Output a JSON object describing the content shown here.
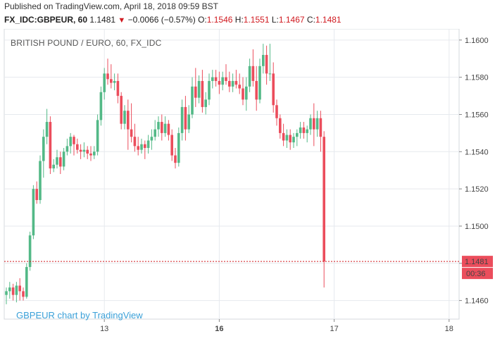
{
  "header": {
    "published": "Published on TradingView.com, April 18, 2018 09:59 BST",
    "symbol": "FX_IDC:GBPEUR, 60",
    "last": "1.1481",
    "change": "−0.0066 (−0.57%)",
    "o_label": "O:",
    "o_value": "1.1546",
    "h_label": "H:",
    "h_value": "1.1551",
    "l_label": "L:",
    "l_value": "1.1467",
    "c_label": "C:",
    "c_value": "1.1481"
  },
  "watermark": "GBPEUR chart by TradingView",
  "colors": {
    "up": "#53b987",
    "down": "#eb4d5c",
    "grid": "#e6e9ee",
    "price_line": "#d0191f"
  },
  "chart_data": {
    "type": "candlestick",
    "title": "BRITISH POUND / EURO, 60, FX_IDC",
    "ylim": [
      1.145,
      1.1606
    ],
    "y_ticks": [
      "1.1600",
      "1.1580",
      "1.1560",
      "1.1540",
      "1.1520",
      "1.1500",
      "1.1480",
      "1.1460"
    ],
    "x_ticks": [
      {
        "label": "13",
        "bar": 29,
        "bold": false
      },
      {
        "label": "16",
        "bar": 63,
        "bold": true
      },
      {
        "label": "17",
        "bar": 97,
        "bold": false
      },
      {
        "label": "18",
        "bar": 131,
        "bold": false
      }
    ],
    "last_price": "1.1481",
    "countdown": "00:36",
    "ohlc": [
      [
        1.1463,
        1.1467,
        1.1458,
        1.1465
      ],
      [
        1.1465,
        1.147,
        1.1461,
        1.1467
      ],
      [
        1.1467,
        1.1469,
        1.146,
        1.1463
      ],
      [
        1.1463,
        1.147,
        1.1459,
        1.1468
      ],
      [
        1.1468,
        1.1472,
        1.146,
        1.1465
      ],
      [
        1.1465,
        1.1467,
        1.146,
        1.1462
      ],
      [
        1.1462,
        1.148,
        1.1461,
        1.1478
      ],
      [
        1.1478,
        1.1497,
        1.1476,
        1.1495
      ],
      [
        1.1495,
        1.1522,
        1.1493,
        1.152
      ],
      [
        1.152,
        1.1524,
        1.1512,
        1.1514
      ],
      [
        1.1514,
        1.1538,
        1.1512,
        1.1535
      ],
      [
        1.1535,
        1.1552,
        1.1526,
        1.1548
      ],
      [
        1.1548,
        1.1563,
        1.1544,
        1.1556
      ],
      [
        1.1556,
        1.1559,
        1.1528,
        1.1531
      ],
      [
        1.1531,
        1.1536,
        1.1529,
        1.1533
      ],
      [
        1.1533,
        1.1541,
        1.1531,
        1.1537
      ],
      [
        1.1537,
        1.154,
        1.1528,
        1.1532
      ],
      [
        1.1532,
        1.1542,
        1.153,
        1.154
      ],
      [
        1.154,
        1.1547,
        1.1538,
        1.1543
      ],
      [
        1.1543,
        1.155,
        1.1539,
        1.1548
      ],
      [
        1.1548,
        1.1549,
        1.1538,
        1.1544
      ],
      [
        1.1544,
        1.1547,
        1.1539,
        1.1541
      ],
      [
        1.1541,
        1.1544,
        1.1536,
        1.154
      ],
      [
        1.154,
        1.1545,
        1.1537,
        1.1541
      ],
      [
        1.1541,
        1.1543,
        1.1536,
        1.1539
      ],
      [
        1.1539,
        1.1543,
        1.1535,
        1.1538
      ],
      [
        1.1538,
        1.1543,
        1.1536,
        1.154
      ],
      [
        1.154,
        1.156,
        1.1538,
        1.1557
      ],
      [
        1.1557,
        1.1575,
        1.1554,
        1.1572
      ],
      [
        1.1572,
        1.1585,
        1.1568,
        1.1582
      ],
      [
        1.1582,
        1.159,
        1.1576,
        1.1579
      ],
      [
        1.1579,
        1.1587,
        1.1574,
        1.1577
      ],
      [
        1.1577,
        1.1582,
        1.1573,
        1.1578
      ],
      [
        1.1578,
        1.1582,
        1.1566,
        1.157
      ],
      [
        1.157,
        1.1572,
        1.1552,
        1.1555
      ],
      [
        1.1555,
        1.1565,
        1.1552,
        1.1562
      ],
      [
        1.1562,
        1.1568,
        1.1541,
        1.1552
      ],
      [
        1.1552,
        1.1566,
        1.1545,
        1.1548
      ],
      [
        1.1548,
        1.1555,
        1.154,
        1.1543
      ],
      [
        1.1543,
        1.1548,
        1.1538,
        1.1541
      ],
      [
        1.1541,
        1.1547,
        1.1539,
        1.1544
      ],
      [
        1.1544,
        1.1546,
        1.1536,
        1.1542
      ],
      [
        1.1542,
        1.1549,
        1.1539,
        1.1546
      ],
      [
        1.1546,
        1.1552,
        1.1541,
        1.1548
      ],
      [
        1.1548,
        1.1557,
        1.1546,
        1.1552
      ],
      [
        1.1552,
        1.1559,
        1.1548,
        1.1556
      ],
      [
        1.1556,
        1.156,
        1.1546,
        1.155
      ],
      [
        1.155,
        1.1559,
        1.1548,
        1.1555
      ],
      [
        1.1555,
        1.1557,
        1.1546,
        1.1549
      ],
      [
        1.1549,
        1.1552,
        1.1535,
        1.1538
      ],
      [
        1.1538,
        1.1542,
        1.1531,
        1.1534
      ],
      [
        1.1534,
        1.1553,
        1.1532,
        1.155
      ],
      [
        1.155,
        1.1568,
        1.1546,
        1.1564
      ],
      [
        1.1564,
        1.157,
        1.1546,
        1.1552
      ],
      [
        1.1552,
        1.1565,
        1.155,
        1.156
      ],
      [
        1.156,
        1.158,
        1.1558,
        1.1575
      ],
      [
        1.1575,
        1.1585,
        1.1564,
        1.1569
      ],
      [
        1.1569,
        1.1581,
        1.1566,
        1.1578
      ],
      [
        1.1578,
        1.1584,
        1.1561,
        1.1564
      ],
      [
        1.1564,
        1.1572,
        1.156,
        1.1568
      ],
      [
        1.1568,
        1.1582,
        1.1565,
        1.1578
      ],
      [
        1.1578,
        1.1584,
        1.1574,
        1.158
      ],
      [
        1.158,
        1.1584,
        1.1575,
        1.1578
      ],
      [
        1.1578,
        1.1583,
        1.1571,
        1.1576
      ],
      [
        1.1576,
        1.1583,
        1.1573,
        1.158
      ],
      [
        1.158,
        1.1587,
        1.1576,
        1.1578
      ],
      [
        1.1578,
        1.1583,
        1.1572,
        1.1575
      ],
      [
        1.1575,
        1.1582,
        1.1572,
        1.1578
      ],
      [
        1.1578,
        1.1584,
        1.1574,
        1.1576
      ],
      [
        1.1576,
        1.1582,
        1.1571,
        1.1574
      ],
      [
        1.1574,
        1.158,
        1.1565,
        1.1568
      ],
      [
        1.1568,
        1.158,
        1.1562,
        1.1575
      ],
      [
        1.1575,
        1.159,
        1.1572,
        1.1586
      ],
      [
        1.1586,
        1.1595,
        1.1575,
        1.1578
      ],
      [
        1.1578,
        1.1586,
        1.1562,
        1.1568
      ],
      [
        1.1568,
        1.159,
        1.1566,
        1.1586
      ],
      [
        1.1586,
        1.1598,
        1.1582,
        1.1592
      ],
      [
        1.1592,
        1.1597,
        1.1576,
        1.1582
      ],
      [
        1.1582,
        1.1598,
        1.1578,
        1.1582
      ],
      [
        1.1582,
        1.1588,
        1.1561,
        1.1565
      ],
      [
        1.1565,
        1.1568,
        1.1554,
        1.1558
      ],
      [
        1.1558,
        1.156,
        1.1547,
        1.155
      ],
      [
        1.155,
        1.1555,
        1.1543,
        1.1546
      ],
      [
        1.1546,
        1.1552,
        1.1542,
        1.1549
      ],
      [
        1.1549,
        1.1552,
        1.1541,
        1.1545
      ],
      [
        1.1545,
        1.155,
        1.1542,
        1.1548
      ],
      [
        1.1548,
        1.1552,
        1.1543,
        1.155
      ],
      [
        1.155,
        1.1556,
        1.1547,
        1.1553
      ],
      [
        1.1553,
        1.1556,
        1.1547,
        1.155
      ],
      [
        1.155,
        1.1554,
        1.1545,
        1.1552
      ],
      [
        1.1552,
        1.156,
        1.1549,
        1.1558
      ],
      [
        1.1558,
        1.1566,
        1.1543,
        1.1552
      ],
      [
        1.1552,
        1.1562,
        1.1548,
        1.1558
      ],
      [
        1.1558,
        1.1562,
        1.154,
        1.1548
      ],
      [
        1.1548,
        1.1551,
        1.1467,
        1.1481
      ]
    ]
  }
}
